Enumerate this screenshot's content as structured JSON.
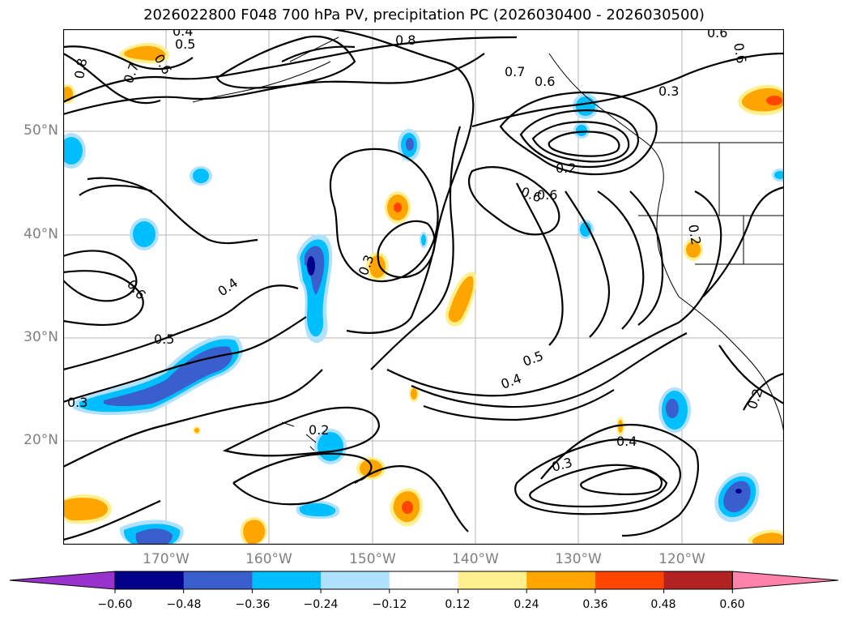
{
  "title": "2026022800 F048 700 hPa PV, precipitation PC (2026030400 - 2026030500)",
  "lat_labels": [
    "50°N",
    "40°N",
    "30°N",
    "20°N"
  ],
  "lon_labels": [
    "170°W",
    "160°W",
    "150°W",
    "140°W",
    "130°W",
    "120°W"
  ],
  "contour_labels": [
    "0.4",
    "0.5",
    "0.8",
    "0.8",
    "0.7",
    "0.6",
    "0.6",
    "0.7",
    "0.6",
    "0.3",
    "0.2",
    "0.6",
    "0.6",
    "0.6",
    "0.2",
    "0.4",
    "0.3",
    "0.6",
    "0.5",
    "0.3",
    "0.5",
    "0.4",
    "0.2",
    "0.3",
    "0.4",
    "0.2"
  ],
  "colorbar": {
    "ticks": [
      "−0.60",
      "−0.48",
      "−0.36",
      "−0.24",
      "−0.12",
      "0.12",
      "0.24",
      "0.36",
      "0.48",
      "0.60"
    ],
    "colors": [
      "#9932cc",
      "#00008b",
      "#3a5fcd",
      "#00bfff",
      "#b0e2ff",
      "#ffffff",
      "#fff08f",
      "#ffa500",
      "#ff4500",
      "#b22222",
      "#ff82ab"
    ]
  },
  "palette": {
    "neg_dark": "#00008b",
    "neg_mid": "#3a5fcd",
    "neg": "#00bfff",
    "neg_light": "#b0e2ff",
    "pos_light": "#fff08f",
    "pos": "#ffa500",
    "pos_mid": "#ff4500",
    "pos_dark": "#b22222"
  }
}
